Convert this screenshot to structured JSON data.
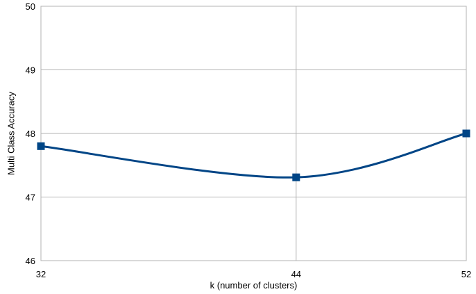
{
  "chart_data": {
    "type": "line",
    "title": "",
    "xlabel": "k (number of clusters)",
    "ylabel": "Multi Class Accuracy",
    "x": [
      32,
      44,
      52
    ],
    "y": [
      47.8,
      47.31,
      48.0
    ],
    "xticks": [
      32,
      44,
      52
    ],
    "yticks": [
      46,
      47,
      48,
      49,
      50
    ],
    "xlim": [
      32,
      52
    ],
    "ylim": [
      46,
      50
    ],
    "grid": true,
    "smooth": true,
    "line_color": "#004586",
    "marker": "square"
  }
}
